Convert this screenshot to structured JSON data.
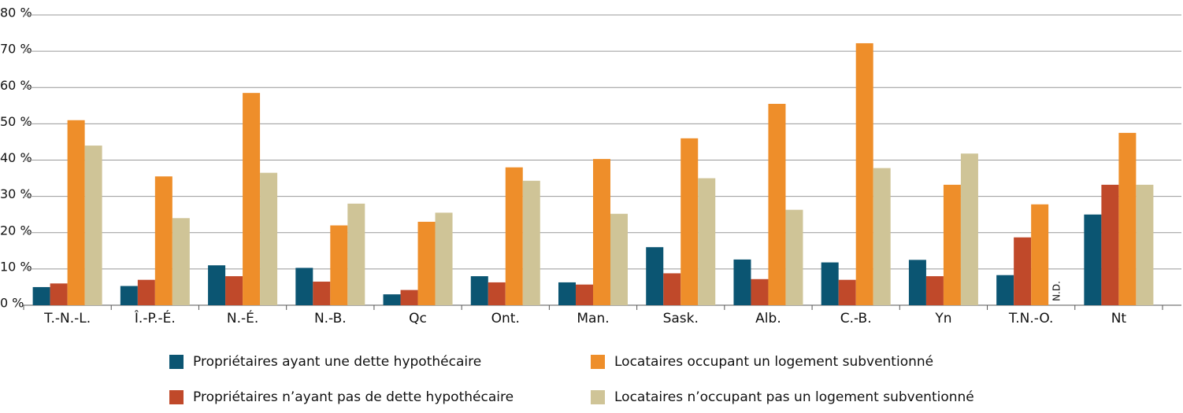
{
  "chart_data": {
    "type": "bar",
    "categories": [
      "T.-N.-L.",
      "Î.-P.-É.",
      "N.-É.",
      "N.-B.",
      "Qc",
      "Ont.",
      "Man.",
      "Sask.",
      "Alb.",
      "C.-B.",
      "Yn",
      "T.N.-O.",
      "Nt"
    ],
    "series": [
      {
        "name": "Propriétaires ayant une dette hypothécaire",
        "color": "#0b5572",
        "values": [
          5,
          5.3,
          11,
          10.3,
          3,
          8,
          6.3,
          16,
          12.6,
          11.8,
          12.5,
          8.3,
          25
        ]
      },
      {
        "name": "Propriétaires n’ayant pas de dette hypothécaire",
        "color": "#c0492a",
        "values": [
          6,
          7,
          8,
          6.5,
          4.2,
          6.3,
          5.7,
          8.8,
          7.2,
          7,
          8,
          18.7,
          33.2
        ]
      },
      {
        "name": "Locataires occupant un logement subventionné",
        "color": "#ee8e2a",
        "values": [
          51,
          35.5,
          58.5,
          22,
          23,
          38,
          40.3,
          46,
          55.5,
          72.2,
          33.2,
          27.8,
          47.5
        ]
      },
      {
        "name": "Locataires n’occupant pas un logement subventionné",
        "color": "#cfc497",
        "values": [
          44,
          24,
          36.5,
          28,
          25.5,
          34.3,
          25.2,
          35,
          26.3,
          37.8,
          41.8,
          null,
          33.2
        ]
      }
    ],
    "annotations": [
      "N.D."
    ],
    "ylim": [
      0,
      80
    ],
    "yticks": [
      {
        "value": 0,
        "label": "0 %"
      },
      {
        "value": 10,
        "label": "10 %"
      },
      {
        "value": 20,
        "label": "20 %"
      },
      {
        "value": 30,
        "label": "30 %"
      },
      {
        "value": 40,
        "label": "40 %"
      },
      {
        "value": 50,
        "label": "50 %"
      },
      {
        "value": 60,
        "label": "60 %"
      },
      {
        "value": 70,
        "label": "70 %"
      },
      {
        "value": 80,
        "label": "80 %"
      }
    ],
    "grid": true
  }
}
